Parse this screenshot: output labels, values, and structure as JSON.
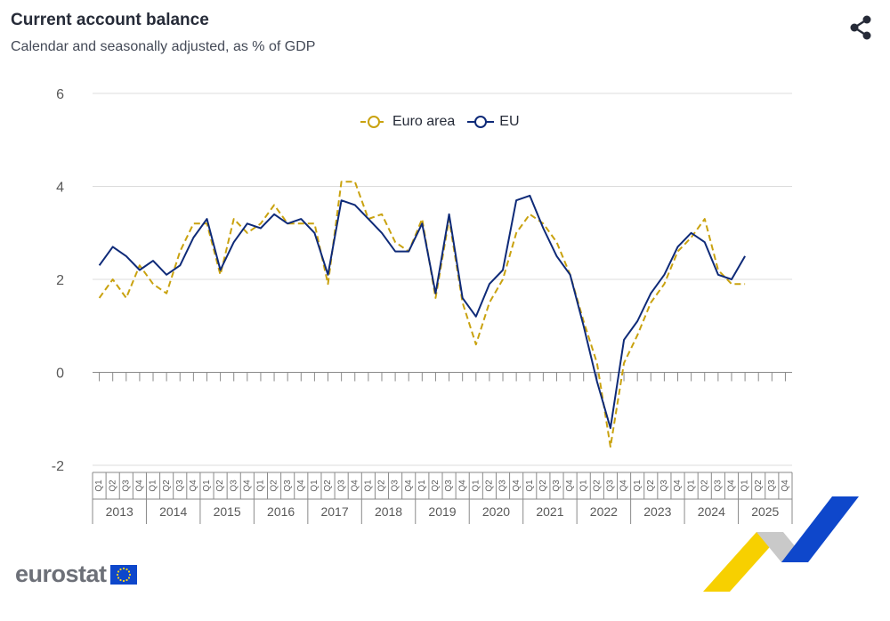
{
  "header": {
    "title": "Current account balance",
    "subtitle": "Calendar and seasonally adjusted, as % of GDP"
  },
  "icons": {
    "share": "share-icon",
    "logo": "eurostat-logo",
    "flag": "eu-flag-icon"
  },
  "logo": {
    "text": "eurostat"
  },
  "colors": {
    "euro_area": "#c9a20f",
    "eu": "#0e2a78",
    "grid": "#dcdcdc",
    "axis": "#8a8a8a",
    "text": "#595959"
  },
  "chart_data": {
    "type": "line",
    "title": "Current account balance",
    "subtitle": "Calendar and seasonally adjusted, as % of GDP",
    "xlabel": "",
    "ylabel": "",
    "ylim": [
      -2,
      6
    ],
    "yticks": [
      "-2",
      "0",
      "2",
      "4",
      "6"
    ],
    "grid": true,
    "legend": "top-center",
    "quarter_labels": [
      "Q1",
      "Q2",
      "Q3",
      "Q4"
    ],
    "years": [
      "2013",
      "2014",
      "2015",
      "2016",
      "2017",
      "2018",
      "2019",
      "2020",
      "2021",
      "2022",
      "2023",
      "2024",
      "2025"
    ],
    "series": [
      {
        "name": "Euro area",
        "style": "dashed",
        "values": [
          1.6,
          2.0,
          1.6,
          2.3,
          1.9,
          1.7,
          2.6,
          3.2,
          3.2,
          2.1,
          3.3,
          3.0,
          3.2,
          3.6,
          3.2,
          3.2,
          3.2,
          1.9,
          4.1,
          4.1,
          3.3,
          3.4,
          2.8,
          2.6,
          3.3,
          1.6,
          3.3,
          1.5,
          0.6,
          1.5,
          2.0,
          3.0,
          3.4,
          3.2,
          2.8,
          2.1,
          1.1,
          0.2,
          -1.6,
          0.2,
          0.8,
          1.5,
          1.9,
          2.6,
          2.9,
          3.3,
          2.2,
          1.9,
          1.9
        ]
      },
      {
        "name": "EU",
        "style": "solid",
        "values": [
          2.3,
          2.7,
          2.5,
          2.2,
          2.4,
          2.1,
          2.3,
          2.9,
          3.3,
          2.2,
          2.8,
          3.2,
          3.1,
          3.4,
          3.2,
          3.3,
          3.0,
          2.1,
          3.7,
          3.6,
          3.3,
          3.0,
          2.6,
          2.6,
          3.2,
          1.7,
          3.4,
          1.6,
          1.2,
          1.9,
          2.2,
          3.7,
          3.8,
          3.1,
          2.5,
          2.1,
          1.0,
          -0.2,
          -1.2,
          0.7,
          1.1,
          1.7,
          2.1,
          2.7,
          3.0,
          2.8,
          2.1,
          2.0,
          2.5
        ]
      }
    ]
  }
}
